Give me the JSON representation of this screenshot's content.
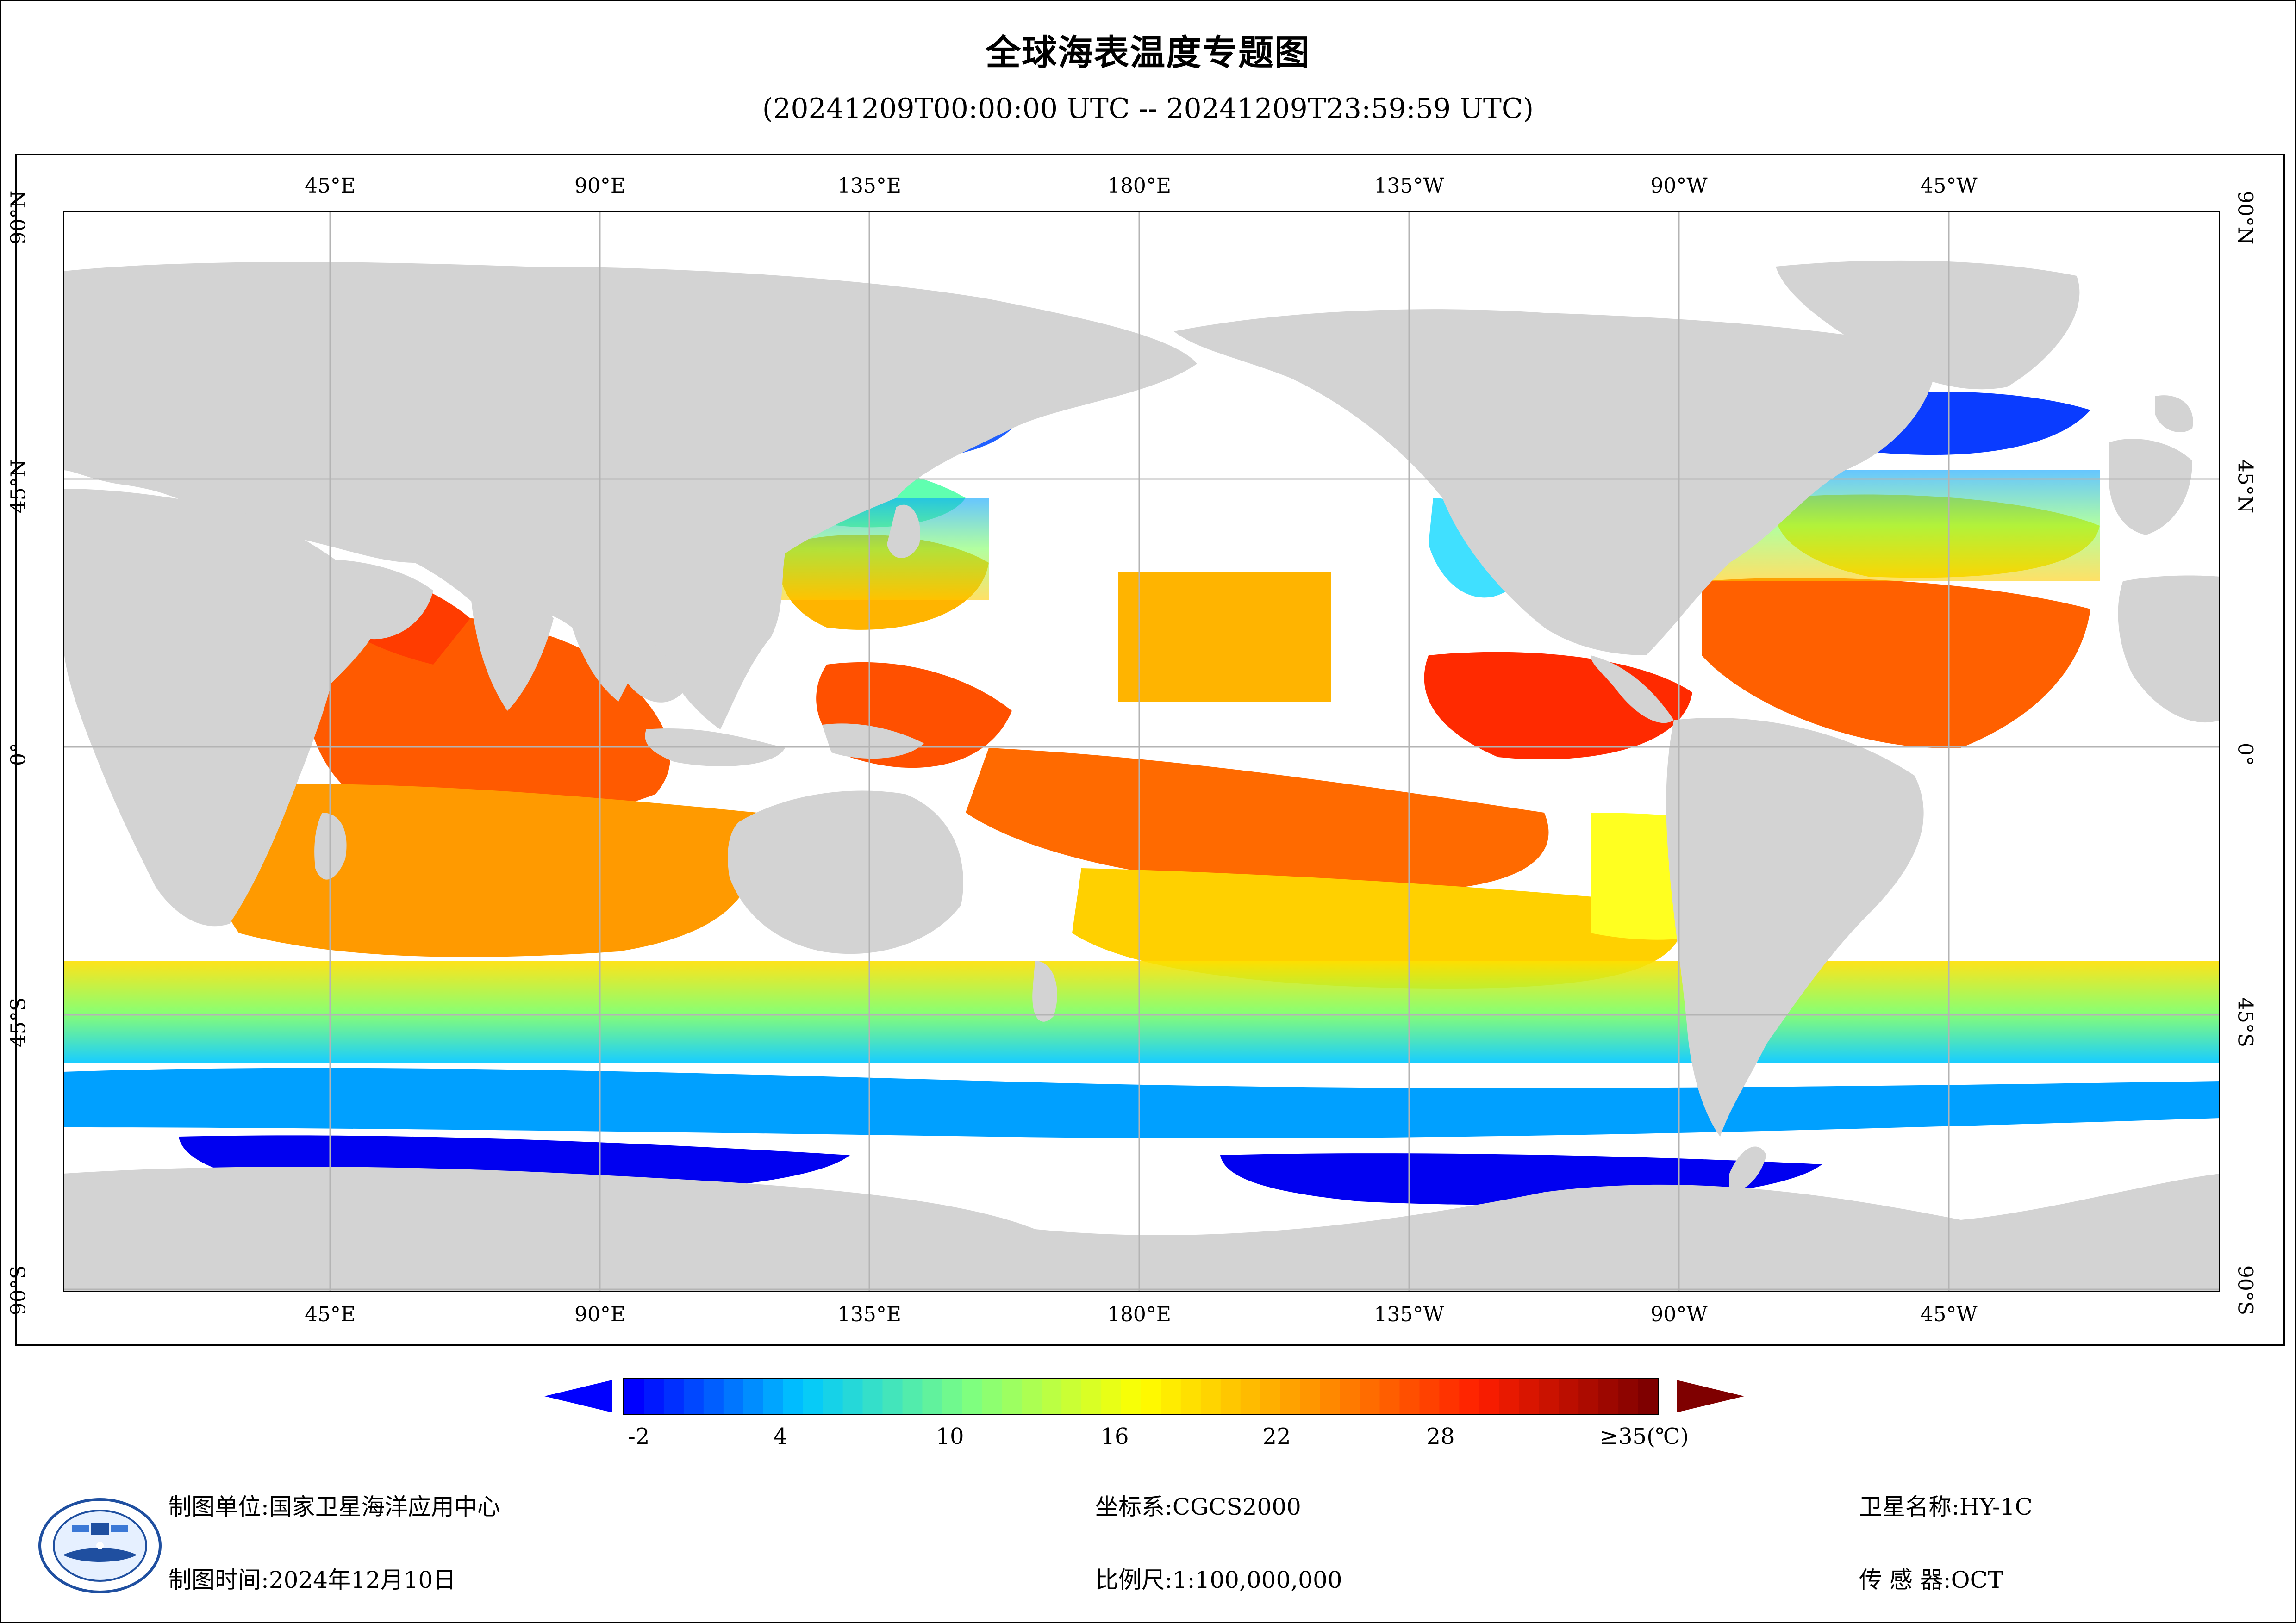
{
  "title": "全球海表温度专题图",
  "subtitle": "(20241209T00:00:00 UTC -- 20241209T23:59:59 UTC)",
  "map": {
    "top_labels": [
      "45°E",
      "90°E",
      "135°E",
      "180°E",
      "135°W",
      "90°W",
      "45°W"
    ],
    "bottom_labels": [
      "45°E",
      "90°E",
      "135°E",
      "180°E",
      "135°W",
      "90°W",
      "45°W"
    ],
    "left_labels": [
      "90°N",
      "45°N",
      "0°",
      "45°S",
      "90°S"
    ],
    "right_labels": [
      "90°N",
      "45°N",
      "0°",
      "45°S",
      "90°S"
    ],
    "colors": {
      "land": "#d3d3d3",
      "ocean_no_data": "#ffffff",
      "grid": "#b4b4b4"
    }
  },
  "colorbar": {
    "unit": "(℃)",
    "tick_labels": [
      "-2",
      "4",
      "10",
      "16",
      "22",
      "28",
      "≥35(℃)"
    ],
    "stops": [
      "#0000ff",
      "#00c8ff",
      "#7fff7f",
      "#ffff00",
      "#ff9600",
      "#ff1e00",
      "#7f0000"
    ],
    "under_color": "#0000ff",
    "over_color": "#7f0000"
  },
  "footer": {
    "org_label": "制图单位:",
    "org_value": "国家卫星海洋应用中心",
    "time_label": "制图时间:",
    "time_value": "2024年12月10日",
    "crs_label": "坐标系:",
    "crs_value": "CGCS2000",
    "scale_label": "比例尺:",
    "scale_value": "1:100,000,000",
    "sat_label": "卫星名称:",
    "sat_value": "HY-1C",
    "sensor_label": "传 感 器:",
    "sensor_value": "OCT"
  }
}
